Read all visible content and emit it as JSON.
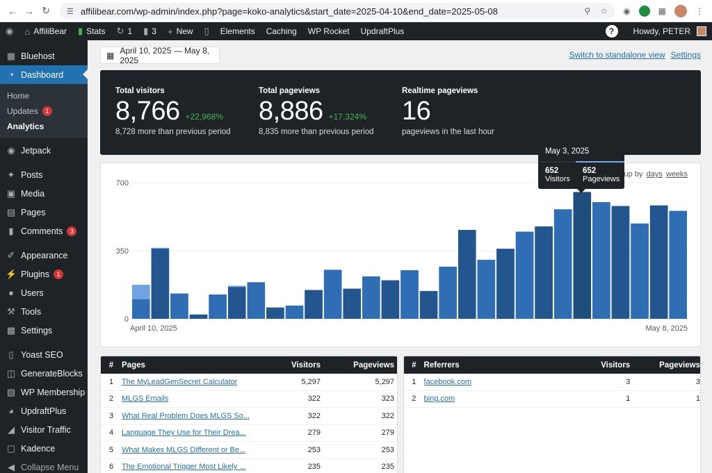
{
  "browser": {
    "url": "affilibear.com/wp-admin/index.php?page=koko-analytics&start_date=2025-04-10&end_date=2025-05-08"
  },
  "adminbar": {
    "site_name": "AffiliBear",
    "stats_label": "Stats",
    "updates_count": "1",
    "comments_count": "3",
    "new_label": "New",
    "items": [
      "Elements",
      "Caching",
      "WP Rocket",
      "UpdraftPlus"
    ],
    "howdy": "Howdy, PETER"
  },
  "sidebar": {
    "top_items": [
      {
        "label": "Bluehost",
        "icon": "grid-icon"
      },
      {
        "label": "Dashboard",
        "icon": "dashboard-icon"
      }
    ],
    "submenu": [
      {
        "label": "Home"
      },
      {
        "label": "Updates",
        "badge": "1"
      },
      {
        "label": "Analytics"
      }
    ],
    "items": [
      {
        "label": "Jetpack",
        "icon": "jetpack-icon"
      },
      {
        "label": "Posts",
        "icon": "pin-icon"
      },
      {
        "label": "Media",
        "icon": "media-icon"
      },
      {
        "label": "Pages",
        "icon": "pages-icon"
      },
      {
        "label": "Comments",
        "icon": "comment-icon",
        "badge": "3"
      },
      {
        "label": "Appearance",
        "icon": "brush-icon"
      },
      {
        "label": "Plugins",
        "icon": "plug-icon",
        "badge": "1"
      },
      {
        "label": "Users",
        "icon": "user-icon"
      },
      {
        "label": "Tools",
        "icon": "wrench-icon"
      },
      {
        "label": "Settings",
        "icon": "settings-icon"
      },
      {
        "label": "Yoast SEO",
        "icon": "yoast-icon"
      },
      {
        "label": "GenerateBlocks",
        "icon": "blocks-icon"
      },
      {
        "label": "WP Membership",
        "icon": "membership-icon"
      },
      {
        "label": "UpdraftPlus",
        "icon": "updraft-icon"
      },
      {
        "label": "Visitor Traffic",
        "icon": "traffic-icon"
      },
      {
        "label": "Kadence",
        "icon": "kadence-icon"
      },
      {
        "label": "Collapse Menu",
        "icon": "collapse-icon"
      }
    ]
  },
  "toolbar": {
    "date_range": "April 10, 2025 — May 8, 2025",
    "standalone_link": "Switch to standalone view",
    "settings_link": "Settings"
  },
  "totals": [
    {
      "label": "Total visitors",
      "value": "8,766",
      "change": "+22,968%",
      "sub": "8,728 more than previous period"
    },
    {
      "label": "Total pageviews",
      "value": "8,886",
      "change": "+17,324%",
      "sub": "8,835 more than previous period"
    },
    {
      "label": "Realtime pageviews",
      "value": "16",
      "change": "",
      "sub": "pageviews in the last hour"
    }
  ],
  "group_by": {
    "label": "Group by",
    "days": "days",
    "weeks": "weeks"
  },
  "tooltip": {
    "date": "May 3, 2025",
    "visitors": "652",
    "visitors_label": "Visitors",
    "pageviews": "652",
    "pageviews_label": "Pageviews"
  },
  "chart_data": {
    "type": "bar",
    "ylim": [
      0,
      700
    ],
    "yticks": [
      0,
      350,
      700
    ],
    "x_start_label": "April 10, 2025",
    "x_end_label": "May 8, 2025",
    "categories": [
      "2025-04-10",
      "2025-04-11",
      "2025-04-12",
      "2025-04-13",
      "2025-04-14",
      "2025-04-15",
      "2025-04-16",
      "2025-04-17",
      "2025-04-18",
      "2025-04-19",
      "2025-04-20",
      "2025-04-21",
      "2025-04-22",
      "2025-04-23",
      "2025-04-24",
      "2025-04-25",
      "2025-04-26",
      "2025-04-27",
      "2025-04-28",
      "2025-04-29",
      "2025-04-30",
      "2025-05-01",
      "2025-05-02",
      "2025-05-03",
      "2025-05-04",
      "2025-05-05",
      "2025-05-06",
      "2025-05-07",
      "2025-05-08"
    ],
    "series": [
      {
        "name": "Visitors",
        "values": [
          100,
          360,
          130,
          22,
          125,
          163,
          188,
          58,
          68,
          148,
          252,
          155,
          218,
          198,
          250,
          143,
          268,
          457,
          303,
          360,
          448,
          475,
          563,
          652,
          600,
          580,
          490,
          583,
          555
        ]
      },
      {
        "name": "Pageviews",
        "values": [
          175,
          365,
          130,
          22,
          125,
          170,
          188,
          58,
          68,
          148,
          252,
          155,
          218,
          198,
          250,
          143,
          268,
          457,
          303,
          360,
          448,
          475,
          563,
          652,
          600,
          580,
          490,
          583,
          555
        ]
      }
    ],
    "colors": {
      "visitors": "#2f6db5",
      "pageviews": "#6fa4e0",
      "highlight": "#1f4e7d"
    }
  },
  "pages_table": {
    "headers": {
      "num": "#",
      "name": "Pages",
      "visitors": "Visitors",
      "pageviews": "Pageviews"
    },
    "rows": [
      {
        "num": "1",
        "name": "The MyLeadGenSecret Calculator",
        "visitors": "5,297",
        "pageviews": "5,297"
      },
      {
        "num": "2",
        "name": "MLGS Emails",
        "visitors": "322",
        "pageviews": "323"
      },
      {
        "num": "3",
        "name": "What Real Problem Does MLGS So...",
        "visitors": "322",
        "pageviews": "322"
      },
      {
        "num": "4",
        "name": "Language They Use for Their Drea...",
        "visitors": "279",
        "pageviews": "279"
      },
      {
        "num": "5",
        "name": "What Makes MLGS Different or Be...",
        "visitors": "253",
        "pageviews": "253"
      },
      {
        "num": "6",
        "name": "The Emotional Trigger Most Likely ...",
        "visitors": "235",
        "pageviews": "235"
      }
    ]
  },
  "referrers_table": {
    "headers": {
      "num": "#",
      "name": "Referrers",
      "visitors": "Visitors",
      "pageviews": "Pageviews"
    },
    "rows": [
      {
        "num": "1",
        "name": "facebook.com",
        "visitors": "3",
        "pageviews": "3"
      },
      {
        "num": "2",
        "name": "bing.com",
        "visitors": "1",
        "pageviews": "1"
      }
    ]
  }
}
